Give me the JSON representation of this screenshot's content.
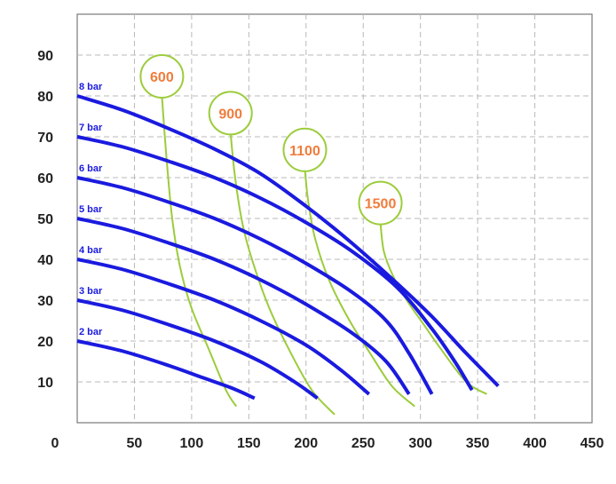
{
  "chart_data": {
    "type": "line",
    "title": "",
    "xlabel": "",
    "ylabel": "",
    "xlim": [
      0,
      450
    ],
    "ylim": [
      0,
      100
    ],
    "xticks": [
      "50",
      "100",
      "150",
      "200",
      "250",
      "300",
      "350",
      "400",
      "450"
    ],
    "yticks": [
      "10",
      "20",
      "30",
      "40",
      "50",
      "60",
      "70",
      "80",
      "90"
    ],
    "origin_label": "0",
    "grid": true,
    "colors": {
      "pressure": "#1a1adf",
      "speed": "#9ccc3c",
      "speed_label": "#f07c3c",
      "grid": "#b8b8b8",
      "axes": "#7a7a7a"
    },
    "series": [
      {
        "name": "2 bar",
        "points": [
          [
            0,
            20
          ],
          [
            40,
            17.5
          ],
          [
            80,
            14
          ],
          [
            110,
            11
          ],
          [
            135,
            8.5
          ],
          [
            155,
            6
          ]
        ]
      },
      {
        "name": "3 bar",
        "points": [
          [
            0,
            30
          ],
          [
            40,
            27.5
          ],
          [
            80,
            24
          ],
          [
            120,
            20
          ],
          [
            160,
            15
          ],
          [
            190,
            10
          ],
          [
            210,
            6
          ]
        ]
      },
      {
        "name": "4 bar",
        "points": [
          [
            0,
            40
          ],
          [
            40,
            37.5
          ],
          [
            80,
            34
          ],
          [
            120,
            30
          ],
          [
            160,
            25
          ],
          [
            200,
            19
          ],
          [
            230,
            13
          ],
          [
            255,
            7
          ]
        ]
      },
      {
        "name": "5 bar",
        "points": [
          [
            0,
            50
          ],
          [
            40,
            47.5
          ],
          [
            80,
            44
          ],
          [
            120,
            40
          ],
          [
            160,
            35
          ],
          [
            200,
            29
          ],
          [
            240,
            22
          ],
          [
            270,
            15
          ],
          [
            290,
            7
          ]
        ]
      },
      {
        "name": "6 bar",
        "points": [
          [
            0,
            60
          ],
          [
            40,
            57.5
          ],
          [
            80,
            54
          ],
          [
            120,
            50
          ],
          [
            160,
            45
          ],
          [
            200,
            39
          ],
          [
            240,
            32
          ],
          [
            270,
            25
          ],
          [
            290,
            17
          ],
          [
            310,
            7
          ]
        ]
      },
      {
        "name": "7 bar",
        "points": [
          [
            0,
            70
          ],
          [
            40,
            67.5
          ],
          [
            80,
            64
          ],
          [
            120,
            60
          ],
          [
            160,
            55
          ],
          [
            200,
            49
          ],
          [
            240,
            42
          ],
          [
            280,
            33
          ],
          [
            310,
            23
          ],
          [
            330,
            15
          ],
          [
            345,
            8
          ]
        ]
      },
      {
        "name": "8 bar",
        "points": [
          [
            0,
            80
          ],
          [
            40,
            76.5
          ],
          [
            80,
            72
          ],
          [
            120,
            67
          ],
          [
            160,
            61
          ],
          [
            200,
            53
          ],
          [
            240,
            44
          ],
          [
            280,
            34
          ],
          [
            310,
            26
          ],
          [
            340,
            17
          ],
          [
            368,
            9
          ]
        ]
      }
    ],
    "speed_curves": [
      {
        "label": "600",
        "points": [
          [
            74,
            80
          ],
          [
            78,
            65
          ],
          [
            83,
            50
          ],
          [
            90,
            38
          ],
          [
            100,
            28
          ],
          [
            115,
            18
          ],
          [
            130,
            8
          ],
          [
            139,
            4
          ]
        ]
      },
      {
        "label": "900",
        "points": [
          [
            134,
            71
          ],
          [
            138,
            60
          ],
          [
            145,
            48
          ],
          [
            155,
            38
          ],
          [
            168,
            28
          ],
          [
            185,
            18
          ],
          [
            205,
            8
          ],
          [
            225,
            2
          ]
        ]
      },
      {
        "label": "1100",
        "points": [
          [
            199,
            62
          ],
          [
            202,
            54
          ],
          [
            208,
            45
          ],
          [
            220,
            35
          ],
          [
            238,
            25
          ],
          [
            256,
            17
          ],
          [
            275,
            9
          ],
          [
            295,
            4
          ]
        ]
      },
      {
        "label": "1500",
        "points": [
          [
            265,
            49
          ],
          [
            268,
            42
          ],
          [
            276,
            36
          ],
          [
            288,
            30
          ],
          [
            303,
            24
          ],
          [
            318,
            18
          ],
          [
            340,
            10
          ],
          [
            358,
            7
          ]
        ]
      }
    ]
  }
}
